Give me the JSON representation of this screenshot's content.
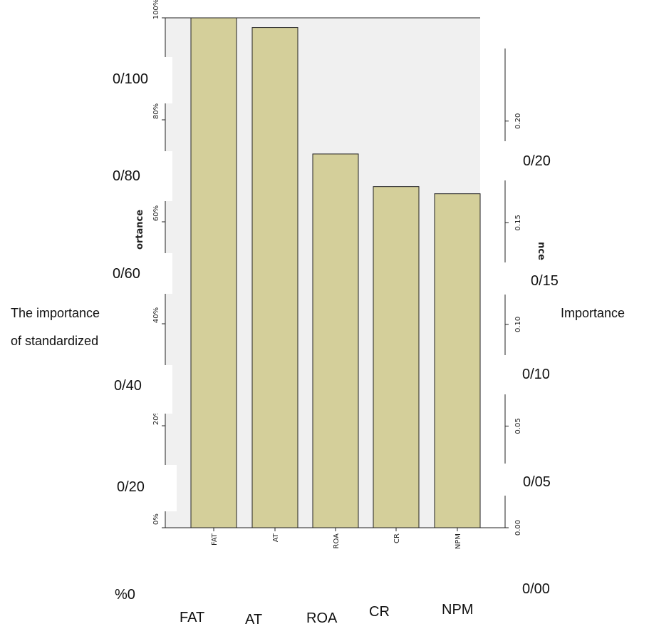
{
  "chart_data": {
    "type": "bar",
    "categories": [
      "FAT",
      "AT",
      "ROA",
      "CR",
      "NPM"
    ],
    "values": [
      100,
      98.1,
      73.3,
      66.9,
      65.5
    ],
    "bar_color": "#d4cf9a",
    "left_axis": {
      "ylim": [
        0,
        100
      ],
      "ticks": [
        "0%",
        "20%",
        "40%",
        "60%",
        "80%",
        "100%"
      ],
      "label_fragment": "ortance"
    },
    "right_axis": {
      "ylim": [
        0,
        0.25
      ],
      "ticks": [
        "0.00",
        "0.05",
        "0.10",
        "0.15",
        "0.20"
      ],
      "label_fragment": "nce"
    },
    "overlay_left_ticks": [
      "%0",
      "0/20",
      "0/40",
      "0/60",
      "0/80",
      "0/100"
    ],
    "overlay_right_ticks": [
      "0/00",
      "0/05",
      "0/10",
      "0/15",
      "0/20"
    ],
    "overlay_left_title": [
      "The importance",
      "of standardized"
    ],
    "overlay_right_title": "Importance",
    "overlay_categories": [
      "FAT",
      "AT",
      "ROA",
      "CR",
      "NPM"
    ]
  }
}
